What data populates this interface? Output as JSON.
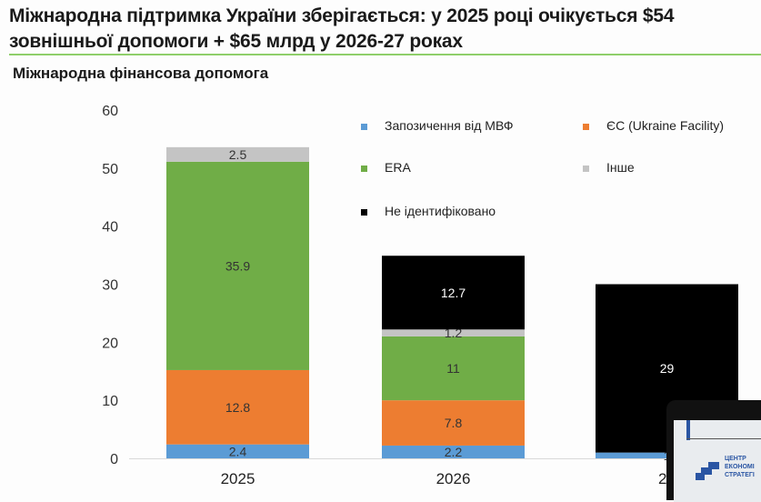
{
  "header": {
    "title_line1": "Міжнародна підтримка України зберігається: у 2025 році очікується $54",
    "title_line2": "зовнішньої допомоги + $65 млрд у 2026-27 роках",
    "accent_color": "#8fcf6a"
  },
  "chart_data": {
    "type": "bar",
    "stacked": true,
    "title": "Міжнародна фінансова допомога",
    "xlabel": "",
    "ylabel": "",
    "ylim": [
      0,
      60
    ],
    "yticks": [
      0,
      10,
      20,
      30,
      40,
      50,
      60
    ],
    "grid": false,
    "legend_position": "top-right",
    "categories": [
      "2025",
      "2026",
      "20"
    ],
    "series": [
      {
        "name": "Запозичення від МВФ",
        "color": "#5b9bd5",
        "values": [
          2.4,
          2.2,
          1
        ],
        "labels": [
          "2.4",
          "2.2",
          "1"
        ],
        "label_color": "#333333"
      },
      {
        "name": "ЄС (Ukraine Facility)",
        "color": "#ed7d31",
        "values": [
          12.8,
          7.8,
          0
        ],
        "labels": [
          "12.8",
          "7.8",
          ""
        ],
        "label_color": "#333333"
      },
      {
        "name": "ERA",
        "color": "#70ad47",
        "values": [
          35.9,
          11,
          0
        ],
        "labels": [
          "35.9",
          "11",
          ""
        ],
        "label_color": "#333333"
      },
      {
        "name": "Інше",
        "color": "#c4c4c4",
        "values": [
          2.5,
          1.2,
          0
        ],
        "labels": [
          "2.5",
          "1.2",
          ""
        ],
        "label_color": "#333333"
      },
      {
        "name": "Не ідентифіковано",
        "color": "#000000",
        "values": [
          0,
          12.7,
          29
        ],
        "labels": [
          "",
          "12.7",
          "29"
        ],
        "label_color": "#ffffff"
      }
    ]
  },
  "overlay": {
    "brand_line1": "ЦЕНТР",
    "brand_line2": "ЕКОНОМІ",
    "brand_line3": "СТРАТЕГІ"
  }
}
